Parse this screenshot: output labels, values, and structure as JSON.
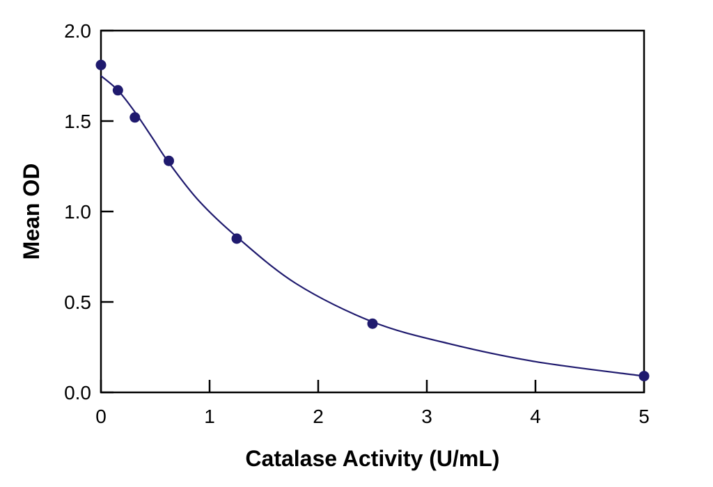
{
  "chart_data": {
    "type": "scatter",
    "title": "",
    "xlabel": "Catalase Activity (U/mL)",
    "ylabel": "Mean OD",
    "xlim": [
      0,
      5
    ],
    "ylim": [
      0,
      2.0
    ],
    "xticks": [
      "0",
      "1",
      "2",
      "3",
      "4",
      "5"
    ],
    "yticks": [
      "0.0",
      "0.5",
      "1.0",
      "1.5",
      "2.0"
    ],
    "grid": false,
    "legend": "none",
    "color": "#1f1a6e",
    "series": [
      {
        "x": [
          0,
          0.156,
          0.3125,
          0.625,
          1.25,
          2.5,
          5
        ],
        "y": [
          1.81,
          1.67,
          1.52,
          1.28,
          0.85,
          0.38,
          0.09
        ]
      }
    ],
    "fit_curve": {
      "x": [
        0,
        0.156,
        0.3125,
        0.47,
        0.625,
        0.9,
        1.25,
        1.8,
        2.5,
        3.2,
        4.0,
        5.0
      ],
      "y": [
        1.75,
        1.67,
        1.55,
        1.41,
        1.27,
        1.06,
        0.86,
        0.6,
        0.39,
        0.27,
        0.17,
        0.09
      ]
    }
  }
}
